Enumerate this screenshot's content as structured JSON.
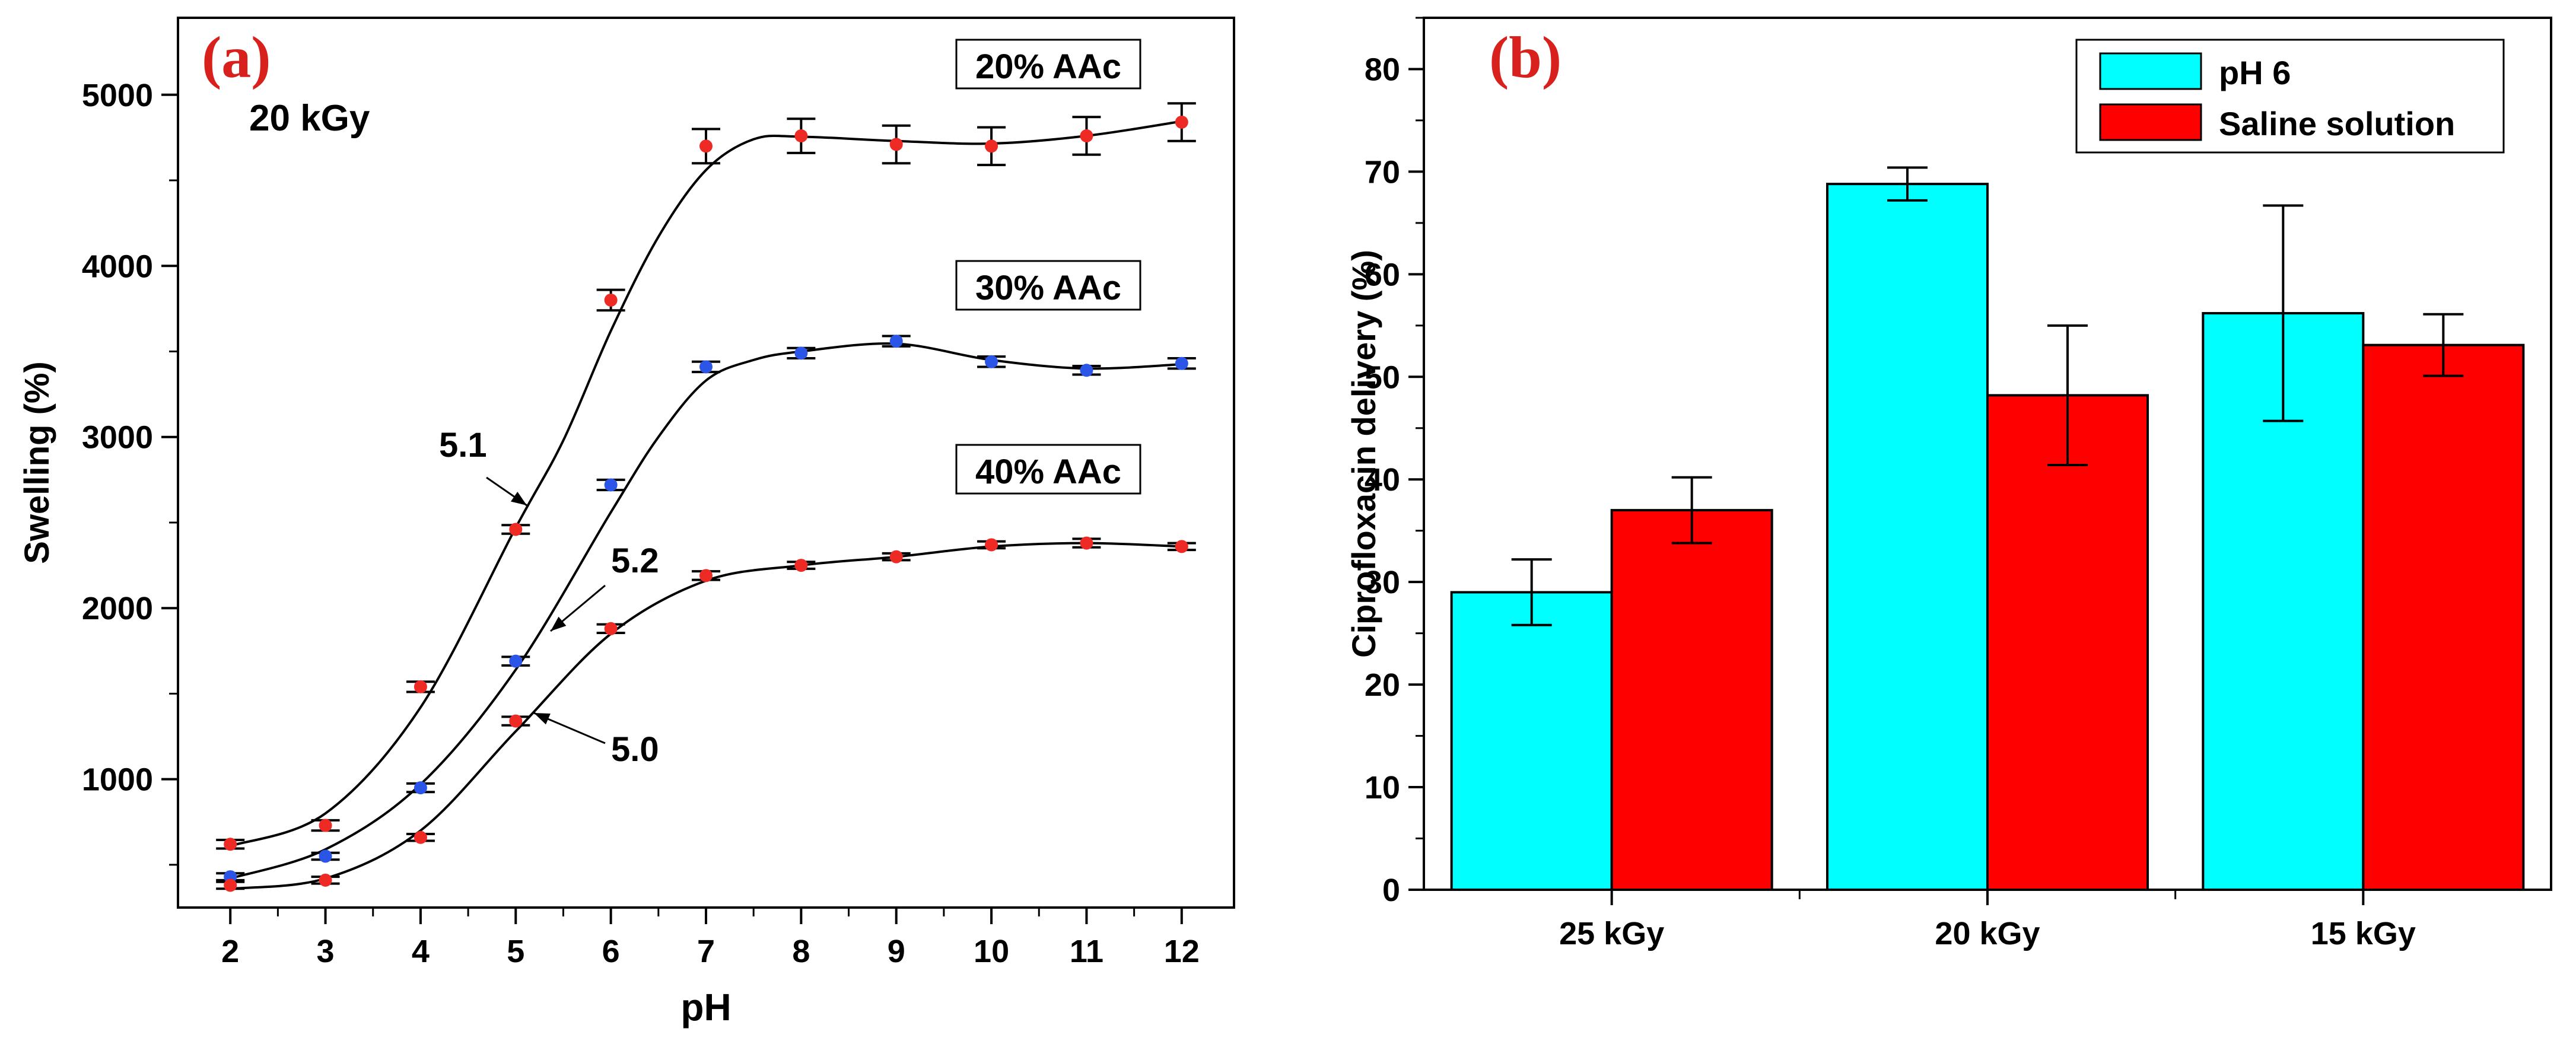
{
  "chart_data": [
    {
      "type": "scatter",
      "panel_label": "(a)",
      "xlabel": "pH",
      "ylabel": "Swelling (%)",
      "xlim": [
        1.45,
        12.55
      ],
      "ylim": [
        250,
        5450
      ],
      "xticks": [
        2,
        3,
        4,
        5,
        6,
        7,
        8,
        9,
        10,
        11,
        12
      ],
      "yticks": [
        1000,
        2000,
        3000,
        4000,
        5000
      ],
      "grid": false,
      "corner_label": "20 kGy",
      "series": [
        {
          "name": "20% AAc",
          "marker_color": "#ee2a24",
          "x": [
            2,
            3,
            4,
            5,
            6,
            7,
            8,
            9,
            10,
            11,
            12
          ],
          "y": [
            620,
            730,
            1540,
            2460,
            3800,
            4700,
            4760,
            4710,
            4700,
            4760,
            4840
          ],
          "err": [
            25,
            30,
            30,
            25,
            60,
            100,
            100,
            110,
            110,
            110,
            110
          ],
          "curve": [
            [
              2,
              610
            ],
            [
              3,
              800
            ],
            [
              4,
              1420
            ],
            [
              5,
              2470
            ],
            [
              5.5,
              2980
            ],
            [
              6,
              3620
            ],
            [
              6.5,
              4170
            ],
            [
              7,
              4560
            ],
            [
              7.5,
              4740
            ],
            [
              8,
              4755
            ],
            [
              9,
              4730
            ],
            [
              10,
              4715
            ],
            [
              11,
              4760
            ],
            [
              12,
              4845
            ]
          ]
        },
        {
          "name": "30% AAc",
          "marker_color": "#2b55e6",
          "x": [
            2,
            3,
            4,
            5,
            6,
            7,
            8,
            9,
            10,
            11,
            12
          ],
          "y": [
            430,
            550,
            950,
            1690,
            2720,
            3410,
            3490,
            3560,
            3440,
            3390,
            3430
          ],
          "err": [
            20,
            20,
            25,
            25,
            30,
            30,
            30,
            30,
            30,
            25,
            30
          ],
          "curve": [
            [
              2,
              420
            ],
            [
              3,
              590
            ],
            [
              4,
              970
            ],
            [
              5,
              1640
            ],
            [
              6,
              2560
            ],
            [
              6.5,
              3000
            ],
            [
              7,
              3330
            ],
            [
              7.5,
              3450
            ],
            [
              8,
              3500
            ],
            [
              9,
              3545
            ],
            [
              10,
              3450
            ],
            [
              11,
              3400
            ],
            [
              12,
              3425
            ]
          ]
        },
        {
          "name": "40% AAc",
          "marker_color": "#ee2a24",
          "x": [
            2,
            3,
            4,
            5,
            6,
            7,
            8,
            9,
            10,
            11,
            12
          ],
          "y": [
            380,
            410,
            660,
            1340,
            1880,
            2190,
            2250,
            2300,
            2370,
            2380,
            2360
          ],
          "err": [
            20,
            20,
            20,
            25,
            25,
            25,
            20,
            20,
            20,
            25,
            20
          ],
          "curve": [
            [
              2,
              360
            ],
            [
              3,
              420
            ],
            [
              4,
              700
            ],
            [
              5,
              1280
            ],
            [
              6,
              1850
            ],
            [
              7,
              2160
            ],
            [
              8,
              2250
            ],
            [
              9,
              2300
            ],
            [
              10,
              2360
            ],
            [
              11,
              2380
            ],
            [
              12,
              2360
            ]
          ]
        }
      ],
      "annotations": [
        {
          "text": "5.1",
          "x": 5.0,
          "y": 2500
        },
        {
          "text": "5.2",
          "x": 5.2,
          "y": 1800
        },
        {
          "text": "5.0",
          "x": 5.1,
          "y": 1300
        }
      ]
    },
    {
      "type": "bar",
      "panel_label": "(b)",
      "xlabel": "",
      "ylabel": "Ciprofloxacin delivery (%)",
      "ylim": [
        0,
        85
      ],
      "yticks": [
        0,
        10,
        20,
        30,
        40,
        50,
        60,
        70,
        80
      ],
      "grid": false,
      "legend_position": "top-right",
      "categories": [
        "25 kGy",
        "20 kGy",
        "15 kGy"
      ],
      "series": [
        {
          "name": "pH 6",
          "color": "#00ffff",
          "values": [
            29,
            68.8,
            56.2
          ],
          "err": [
            3.2,
            1.6,
            10.5
          ]
        },
        {
          "name": "Saline solution",
          "color": "#ff0000",
          "values": [
            37,
            48.2,
            53.1
          ],
          "err": [
            3.2,
            6.8,
            3
          ]
        }
      ]
    }
  ]
}
